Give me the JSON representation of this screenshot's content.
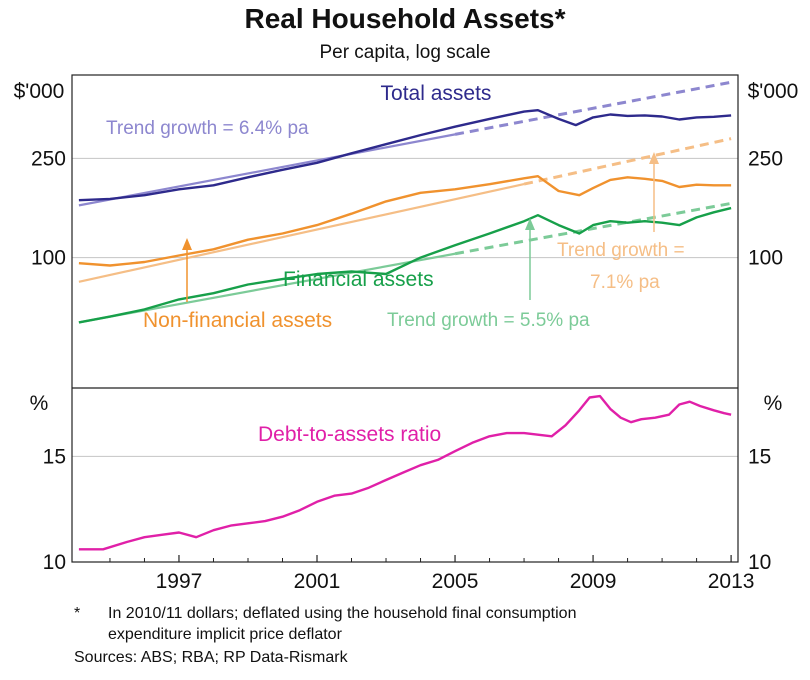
{
  "chart_data": {
    "type": "line",
    "title": "Real Household Assets*",
    "subtitle": "Per capita, log scale",
    "x_ticks": [
      "1997",
      "2001",
      "2005",
      "2009",
      "2013"
    ],
    "x_tick_values": [
      1997,
      2001,
      2005,
      2009,
      2013
    ],
    "xlim": [
      1993.9,
      2013.2
    ],
    "panels": [
      {
        "name": "assets",
        "scale": "log",
        "unit_label": "$'000",
        "y_ticks": [
          "100",
          "250"
        ],
        "y_tick_values": [
          100,
          250
        ],
        "ylim": [
          30,
          540
        ],
        "series": [
          {
            "name": "Total assets",
            "label": "Total assets",
            "color": "#2e2a8c",
            "points": [
              [
                1994.1,
                170
              ],
              [
                1995,
                172
              ],
              [
                1996,
                178
              ],
              [
                1997,
                188
              ],
              [
                1998,
                195
              ],
              [
                1999,
                210
              ],
              [
                2000,
                225
              ],
              [
                2001,
                240
              ],
              [
                2002,
                262
              ],
              [
                2003,
                285
              ],
              [
                2004,
                310
              ],
              [
                2005,
                335
              ],
              [
                2006,
                360
              ],
              [
                2007,
                385
              ],
              [
                2007.4,
                390
              ],
              [
                2008,
                360
              ],
              [
                2008.5,
                340
              ],
              [
                2009,
                365
              ],
              [
                2009.5,
                375
              ],
              [
                2010,
                370
              ],
              [
                2010.5,
                372
              ],
              [
                2011,
                368
              ],
              [
                2011.5,
                358
              ],
              [
                2012,
                365
              ],
              [
                2012.5,
                367
              ],
              [
                2013,
                372
              ]
            ]
          },
          {
            "name": "Non-financial assets",
            "label": "Non-financial assets",
            "color": "#f0922e",
            "points": [
              [
                1994.1,
                95
              ],
              [
                1995,
                93
              ],
              [
                1996,
                96
              ],
              [
                1997,
                102
              ],
              [
                1998,
                108
              ],
              [
                1999,
                118
              ],
              [
                2000,
                125
              ],
              [
                2001,
                135
              ],
              [
                2002,
                150
              ],
              [
                2003,
                168
              ],
              [
                2004,
                182
              ],
              [
                2005,
                188
              ],
              [
                2006,
                197
              ],
              [
                2007,
                208
              ],
              [
                2007.4,
                212
              ],
              [
                2008,
                185
              ],
              [
                2008.6,
                178
              ],
              [
                2009,
                190
              ],
              [
                2009.5,
                205
              ],
              [
                2010,
                210
              ],
              [
                2010.5,
                207
              ],
              [
                2011,
                203
              ],
              [
                2011.5,
                192
              ],
              [
                2012,
                196
              ],
              [
                2012.5,
                195
              ],
              [
                2013,
                195
              ]
            ]
          },
          {
            "name": "Financial assets",
            "label": "Financial assets",
            "color": "#17a04a",
            "points": [
              [
                1994.1,
                55
              ],
              [
                1995,
                58
              ],
              [
                1996,
                62
              ],
              [
                1997,
                68
              ],
              [
                1998,
                72
              ],
              [
                1999,
                78
              ],
              [
                2000,
                82
              ],
              [
                2001,
                86
              ],
              [
                2002,
                88
              ],
              [
                2003,
                86
              ],
              [
                2004,
                100
              ],
              [
                2005,
                112
              ],
              [
                2006,
                125
              ],
              [
                2007,
                140
              ],
              [
                2007.4,
                148
              ],
              [
                2008,
                135
              ],
              [
                2008.6,
                125
              ],
              [
                2009,
                135
              ],
              [
                2009.5,
                140
              ],
              [
                2010,
                138
              ],
              [
                2010.5,
                140
              ],
              [
                2011,
                138
              ],
              [
                2011.5,
                135
              ],
              [
                2012,
                145
              ],
              [
                2012.5,
                152
              ],
              [
                2013,
                158
              ]
            ]
          }
        ],
        "trend_lines": [
          {
            "name": "Total trend",
            "color": "#8d87cf",
            "start": [
              1994.1,
              162
            ],
            "end": [
              2013,
              505
            ],
            "solid_until": 2005
          },
          {
            "name": "Non-financial trend",
            "color": "#f5be86",
            "start": [
              1994.1,
              80
            ],
            "end": [
              2013,
              300
            ],
            "solid_until": 2007
          },
          {
            "name": "Financial trend",
            "color": "#7ccb98",
            "start": [
              1994.1,
              55
            ],
            "end": [
              2013,
              165
            ],
            "solid_until": 2005
          }
        ],
        "annotations": [
          {
            "text": "Total assets",
            "color": "#2e2a8c"
          },
          {
            "text": "Trend growth = 6.4% pa",
            "color": "#8d87cf"
          },
          {
            "text": "Financial assets",
            "color": "#17a04a"
          },
          {
            "text": "Non-financial assets",
            "color": "#f0922e"
          },
          {
            "text": "Trend growth = 5.5% pa",
            "color": "#7ccb98"
          },
          {
            "text": "Trend growth =",
            "color": "#f5be86"
          },
          {
            "text": "7.1% pa",
            "color": "#f5be86"
          }
        ]
      },
      {
        "name": "debt",
        "scale": "log",
        "unit_label": "%",
        "y_ticks": [
          "10",
          "15"
        ],
        "y_tick_values": [
          10,
          15
        ],
        "ylim": [
          10,
          19.5
        ],
        "series": [
          {
            "name": "Debt-to-assets ratio",
            "label": "Debt-to-assets ratio",
            "color": "#e020a8",
            "points": [
              [
                1994.1,
                10.5
              ],
              [
                1994.8,
                10.5
              ],
              [
                1995.5,
                10.8
              ],
              [
                1996,
                11.0
              ],
              [
                1996.5,
                11.1
              ],
              [
                1997,
                11.2
              ],
              [
                1997.5,
                11.0
              ],
              [
                1998,
                11.3
              ],
              [
                1998.5,
                11.5
              ],
              [
                1999,
                11.6
              ],
              [
                1999.5,
                11.7
              ],
              [
                2000,
                11.9
              ],
              [
                2000.5,
                12.2
              ],
              [
                2001,
                12.6
              ],
              [
                2001.5,
                12.9
              ],
              [
                2002,
                13.0
              ],
              [
                2002.5,
                13.3
              ],
              [
                2003,
                13.7
              ],
              [
                2003.5,
                14.1
              ],
              [
                2004,
                14.5
              ],
              [
                2004.5,
                14.8
              ],
              [
                2005,
                15.3
              ],
              [
                2005.5,
                15.8
              ],
              [
                2006,
                16.2
              ],
              [
                2006.5,
                16.4
              ],
              [
                2007,
                16.4
              ],
              [
                2007.4,
                16.3
              ],
              [
                2007.8,
                16.2
              ],
              [
                2008.2,
                16.9
              ],
              [
                2008.6,
                17.9
              ],
              [
                2008.9,
                18.8
              ],
              [
                2009.2,
                18.9
              ],
              [
                2009.5,
                18.0
              ],
              [
                2009.8,
                17.4
              ],
              [
                2010.1,
                17.1
              ],
              [
                2010.4,
                17.3
              ],
              [
                2010.8,
                17.4
              ],
              [
                2011.2,
                17.6
              ],
              [
                2011.5,
                18.3
              ],
              [
                2011.8,
                18.5
              ],
              [
                2012.1,
                18.2
              ],
              [
                2012.5,
                17.9
              ],
              [
                2012.8,
                17.7
              ],
              [
                2013,
                17.6
              ]
            ]
          }
        ],
        "annotations": [
          {
            "text": "Debt-to-assets ratio",
            "color": "#e020a8"
          }
        ]
      }
    ],
    "footnote_marker": "*",
    "footnote_line1": "In 2010/11 dollars; deflated using the household final consumption",
    "footnote_line2": "expenditure implicit price deflator",
    "sources": "Sources: ABS; RBA; RP Data-Rismark"
  }
}
